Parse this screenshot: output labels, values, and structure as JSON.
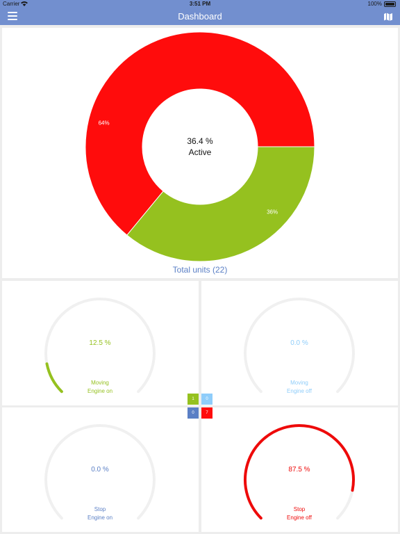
{
  "status_bar": {
    "carrier": "Carrier",
    "time": "3:51 PM",
    "battery": "100%"
  },
  "nav": {
    "title": "Dashboard",
    "menu_icon": "hamburger-menu-icon",
    "map_icon": "map-icon"
  },
  "summary": {
    "center_value": "36.4 %",
    "center_label": "Active",
    "total_units": "Total units (22)"
  },
  "chart_data": [
    {
      "type": "pie",
      "variant": "donut",
      "slices": [
        {
          "label": "64%",
          "value": 64,
          "color": "#ff0c0c"
        },
        {
          "label": "36%",
          "value": 36,
          "color": "#95c11f"
        }
      ]
    }
  ],
  "gauges": [
    {
      "percent_text": "12.5 %",
      "value": 12.5,
      "line1": "Moving",
      "line2": "Engine on",
      "color": "#95c11f"
    },
    {
      "percent_text": "0.0 %",
      "value": 0,
      "line1": "Moving",
      "line2": "Engine off",
      "color": "#8fcdfa"
    },
    {
      "percent_text": "0.0 %",
      "value": 0,
      "line1": "Stop",
      "line2": "Engine on",
      "color": "#5a7fc5"
    },
    {
      "percent_text": "87.5 %",
      "value": 87.5,
      "line1": "Stop",
      "line2": "Engine off",
      "color": "#ee0a0a"
    }
  ],
  "legend": [
    {
      "count": "1",
      "color": "#95c11f"
    },
    {
      "count": "0",
      "color": "#8fcdfa"
    },
    {
      "count": "0",
      "color": "#5a7fc5"
    },
    {
      "count": "7",
      "color": "#ff0c0c"
    }
  ]
}
